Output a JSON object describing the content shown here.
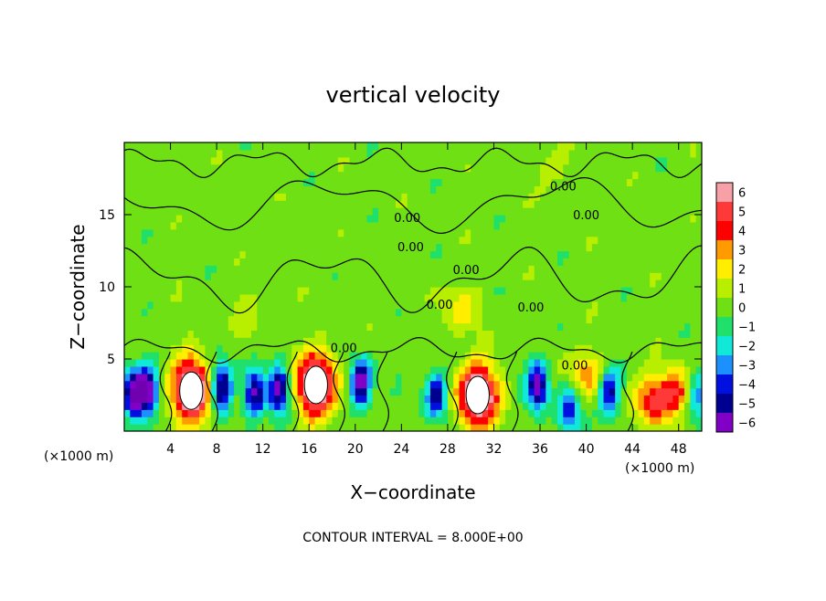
{
  "chart_data": {
    "type": "heatmap",
    "title": "vertical velocity",
    "xlabel": "X−coordinate",
    "ylabel": "Z−coordinate",
    "x_unit_left": "(×1000 m)",
    "x_unit_right": "(×1000 m)",
    "footer": "CONTOUR INTERVAL = 8.000E+00",
    "xlim": [
      0,
      50
    ],
    "ylim": [
      0,
      20
    ],
    "x_ticks": [
      {
        "value": 4,
        "label": "4"
      },
      {
        "value": 8,
        "label": "8"
      },
      {
        "value": 12,
        "label": "12"
      },
      {
        "value": 16,
        "label": "16"
      },
      {
        "value": 20,
        "label": "20"
      },
      {
        "value": 24,
        "label": "24"
      },
      {
        "value": 28,
        "label": "28"
      },
      {
        "value": 32,
        "label": "32"
      },
      {
        "value": 36,
        "label": "36"
      },
      {
        "value": 40,
        "label": "40"
      },
      {
        "value": 44,
        "label": "44"
      },
      {
        "value": 48,
        "label": "48"
      }
    ],
    "y_ticks": [
      {
        "value": 5,
        "label": "5"
      },
      {
        "value": 10,
        "label": "10"
      },
      {
        "value": 15,
        "label": "15"
      }
    ],
    "colorbar": {
      "levels": [
        {
          "label": "6",
          "color": "#f7a0a8"
        },
        {
          "label": "5",
          "color": "#ff3838"
        },
        {
          "label": "4",
          "color": "#ff0000"
        },
        {
          "label": "3",
          "color": "#ff9a00"
        },
        {
          "label": "2",
          "color": "#ffee00"
        },
        {
          "label": "1",
          "color": "#b8ee00"
        },
        {
          "label": "0",
          "color": "#6ee014"
        },
        {
          "label": "−1",
          "color": "#1ee06a"
        },
        {
          "label": "−2",
          "color": "#10e8d8"
        },
        {
          "label": "−3",
          "color": "#1c90ff"
        },
        {
          "label": "−4",
          "color": "#0010e0"
        },
        {
          "label": "−5",
          "color": "#000090"
        },
        {
          "label": "−6",
          "color": "#8000c8"
        }
      ]
    },
    "contour_labels": [
      {
        "text": "0.00",
        "x": 24.5,
        "z": 14.8
      },
      {
        "text": "0.00",
        "x": 24.8,
        "z": 12.8
      },
      {
        "text": "0.00",
        "x": 29.6,
        "z": 11.2
      },
      {
        "text": "0.00",
        "x": 35.2,
        "z": 8.6
      },
      {
        "text": "0.00",
        "x": 27.3,
        "z": 8.8
      },
      {
        "text": "0.00",
        "x": 19.0,
        "z": 5.8
      },
      {
        "text": "0.00",
        "x": 39.0,
        "z": 4.6
      },
      {
        "text": "0.00",
        "x": 38.0,
        "z": 17.0
      },
      {
        "text": "0.00",
        "x": 40.0,
        "z": 15.0
      }
    ],
    "updrafts": [
      {
        "x": 5.8,
        "z": 2.8,
        "strength": 8.0,
        "core": true
      },
      {
        "x": 16.6,
        "z": 3.2,
        "strength": 8.0,
        "core": true
      },
      {
        "x": 30.6,
        "z": 2.5,
        "strength": 8.0,
        "core": true
      },
      {
        "x": 40.0,
        "z": 4.0,
        "strength": 3.0,
        "core": false
      },
      {
        "x": 45.7,
        "z": 2.2,
        "strength": 4.5,
        "core": false
      },
      {
        "x": 48.0,
        "z": 2.6,
        "strength": 4.0,
        "core": false
      },
      {
        "x": 10.5,
        "z": 8.5,
        "strength": 1.0,
        "core": false
      },
      {
        "x": 29.0,
        "z": 8.5,
        "strength": 2.0,
        "core": false
      },
      {
        "x": 37.0,
        "z": 18.0,
        "strength": 1.0,
        "core": false
      }
    ],
    "downdrafts": [
      {
        "x": 0.8,
        "z": 2.6,
        "strength": 6.5
      },
      {
        "x": 2.0,
        "z": 2.8,
        "strength": 6.5
      },
      {
        "x": 8.4,
        "z": 3.0,
        "strength": 6.5
      },
      {
        "x": 11.3,
        "z": 2.7,
        "strength": 6.0
      },
      {
        "x": 13.4,
        "z": 2.8,
        "strength": 6.0
      },
      {
        "x": 20.5,
        "z": 3.3,
        "strength": 6.5
      },
      {
        "x": 27.0,
        "z": 2.5,
        "strength": 5.0
      },
      {
        "x": 35.8,
        "z": 3.2,
        "strength": 6.5
      },
      {
        "x": 38.5,
        "z": 1.5,
        "strength": 4.5
      },
      {
        "x": 42.0,
        "z": 2.8,
        "strength": 5.5
      },
      {
        "x": 49.5,
        "z": 2.5,
        "strength": 4.0
      }
    ]
  }
}
